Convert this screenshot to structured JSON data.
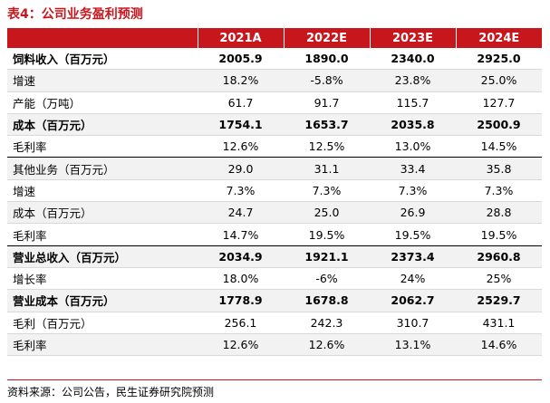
{
  "title": "表4：公司业务盈利预测",
  "headers": [
    "",
    "2021A",
    "2022E",
    "2023E",
    "2024E"
  ],
  "rows": [
    {
      "label": "饲料收入（百万元）",
      "values": [
        "2005.9",
        "1890.0",
        "2340.0",
        "2925.0"
      ]
    },
    {
      "label": "增速",
      "values": [
        "18.2%",
        "-5.8%",
        "23.8%",
        "25.0%"
      ]
    },
    {
      "label": "产能（万吨）",
      "values": [
        "61.7",
        "91.7",
        "115.7",
        "127.7"
      ]
    },
    {
      "label": "成本（百万元）",
      "values": [
        "1754.1",
        "1653.7",
        "2035.8",
        "2500.9"
      ]
    },
    {
      "label": "毛利率",
      "values": [
        "12.6%",
        "12.5%",
        "13.0%",
        "14.5%"
      ]
    },
    {
      "label": "其他业务（百万元）",
      "values": [
        "29.0",
        "31.1",
        "33.4",
        "35.8"
      ]
    },
    {
      "label": "增速",
      "values": [
        "7.3%",
        "7.3%",
        "7.3%",
        "7.3%"
      ]
    },
    {
      "label": "成本（百万元）",
      "values": [
        "24.7",
        "25.0",
        "26.9",
        "28.8"
      ]
    },
    {
      "label": "毛利率",
      "values": [
        "14.7%",
        "19.5%",
        "19.5%",
        "19.5%"
      ]
    },
    {
      "label": "营业总收入（百万元）",
      "values": [
        "2034.9",
        "1921.1",
        "2373.4",
        "2960.8"
      ]
    },
    {
      "label": "增长率",
      "values": [
        "18.0%",
        "-6%",
        "24%",
        "25%"
      ]
    },
    {
      "label": "营业成本（百万元）",
      "values": [
        "1778.9",
        "1678.8",
        "2062.7",
        "2529.7"
      ]
    },
    {
      "label": "毛利（百万元）",
      "values": [
        "256.1",
        "242.3",
        "310.7",
        "431.1"
      ]
    },
    {
      "label": "毛利率",
      "values": [
        "12.6%",
        "12.6%",
        "13.1%",
        "14.6%"
      ]
    }
  ],
  "source": "资料来源：公司公告，民生证券研究院预测"
}
